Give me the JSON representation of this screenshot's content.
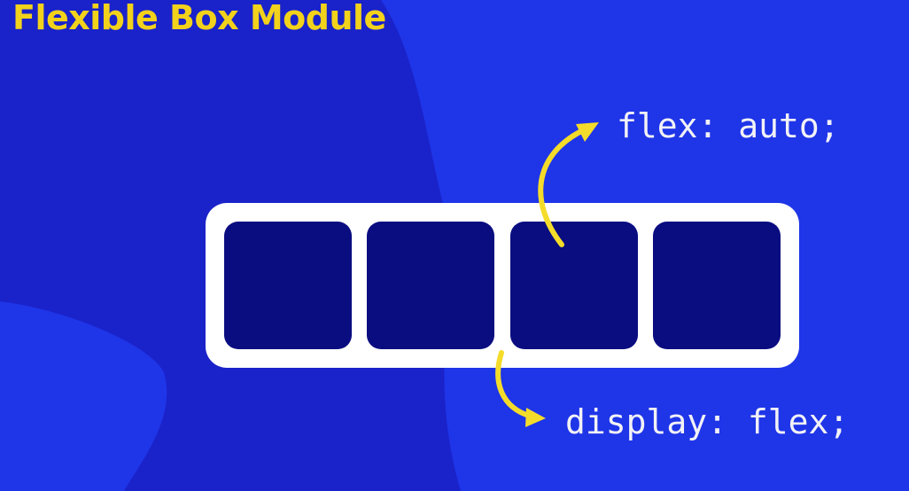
{
  "slide": {
    "title": "Flexible Box Module"
  },
  "diagram": {
    "container_label": "display: flex;",
    "item_label": "flex: auto;",
    "item_count": 4
  },
  "colors": {
    "background": "#1f35e8",
    "background_shape": "#1a22c9",
    "title": "#f2d21b",
    "container": "#ffffff",
    "item": "#0a0d80",
    "arrow": "#f4dc2a",
    "code_text": "#f2f2f6"
  }
}
